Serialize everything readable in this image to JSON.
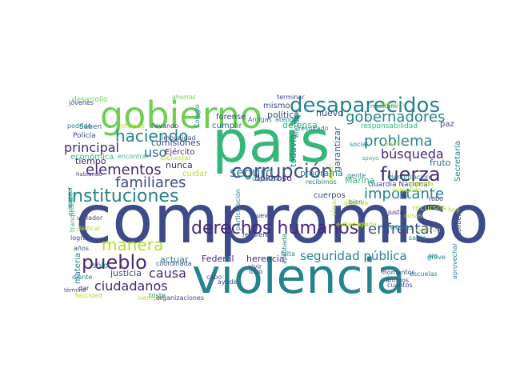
{
  "palette": {
    "dark_purple": "#482878",
    "indigo": "#3e4a89",
    "blue": "#31688e",
    "teal": "#26828e",
    "green": "#35b779",
    "light_green": "#6ece58",
    "lime": "#b5de2b",
    "yellow": "#fde725"
  },
  "words": [
    "compromiso",
    "violencia",
    "país",
    "gobierno",
    "desaparecidos",
    "instituciones",
    "corrupción",
    "fuerza",
    "derechos humanos",
    "pueblo",
    "manera",
    "haciendo",
    "elementos",
    "familiares",
    "gobernadores",
    "problema",
    "importante",
    "principal",
    "ciudadanos",
    "enfrentar",
    "búsqueda",
    "causa",
    "seguro",
    "uso",
    "seguridad pública",
    "nuevo",
    "tiempo",
    "Policía",
    "Saben",
    "desarrollo",
    "comisiones",
    "forense",
    "mismo",
    "política",
    "defensa",
    "responsabilidad",
    "paz",
    "económica",
    "Ejército",
    "cumplir",
    "programa",
    "Marina",
    "todavía",
    "garantizar",
    "fruto",
    "recursos",
    "Guardia Nacional",
    "Secretaría",
    "nunca",
    "cuidar",
    "doloroso",
    "cuerpos",
    "meses",
    "justa",
    "Federal",
    "herencia",
    "actuar",
    "justicia",
    "sólo",
    "materia",
    "momentos",
    "escuelas",
    "amigos",
    "cuantos",
    "saldo",
    "grave",
    "robo",
    "neoliberal",
    "identificación",
    "social",
    "apoyo",
    "asunto",
    "ahorrar",
    "terminar",
    "jóvenes",
    "podrido",
    "oficinas",
    "llevando",
    "Colegio",
    "impunidad",
    "encontrar",
    "bienestar",
    "hablando",
    "urgencia",
    "recibimos",
    "violador",
    "dedicar",
    "lograr",
    "años",
    "felicidad",
    "triste",
    "coordinada",
    "ayude",
    "término",
    "diente",
    "siempre",
    "organizaciones",
    "cabo",
    "vivir",
    "digo",
    "nueva",
    "requiere",
    "aprobada",
    "falta",
    "gente",
    "bien",
    "quiere",
    "viajar",
    "cosas",
    "resultado",
    "atender",
    "efectivos",
    "Amigas",
    "sexenio",
    "mexicano",
    "querer",
    "tranquilidad",
    "participación",
    "aprovechar",
    "dar",
    "ojo",
    "atienda",
    "pasar",
    "cumplido",
    "semana",
    "evitar",
    "cuidado",
    "ayuda",
    "ocasión",
    "hoy"
  ]
}
